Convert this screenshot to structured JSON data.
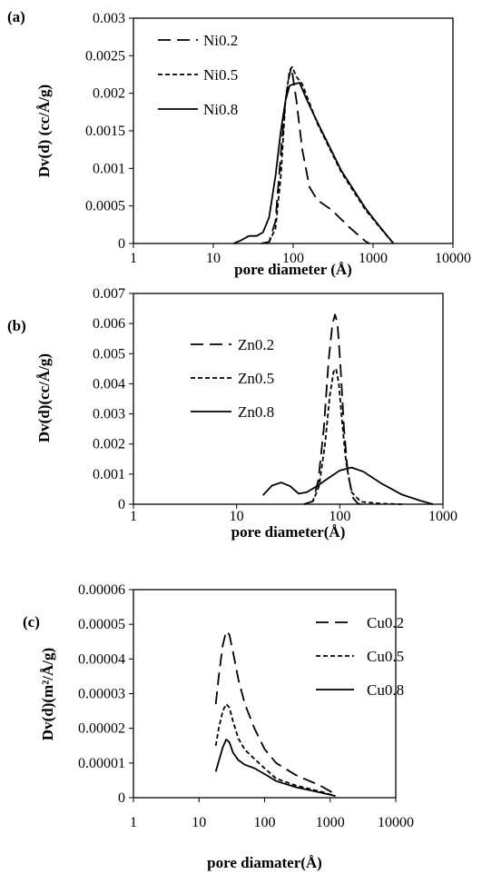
{
  "chart_data": [
    {
      "type": "line",
      "panel_label": "(a)",
      "xlabel": "pore diameter (Å)",
      "ylabel": "Dv(d) (cc/Å/g)",
      "x_scale": "log",
      "xlim": [
        1,
        10000
      ],
      "x_ticks": [
        "1",
        "10",
        "100",
        "1000",
        "10000"
      ],
      "ylim": [
        0,
        0.003
      ],
      "y_ticks": [
        "0",
        "0.0005",
        "0.001",
        "0.0015",
        "0.002",
        "0.0025",
        "0.003"
      ],
      "legend": "top-left inside",
      "series": [
        {
          "name": "Ni0.2",
          "style": "long-dash",
          "points": [
            [
              40,
              0
            ],
            [
              50,
              2e-05
            ],
            [
              60,
              0.0003
            ],
            [
              70,
              0.0012
            ],
            [
              80,
              0.0019
            ],
            [
              88,
              0.0022
            ],
            [
              95,
              0.00235
            ],
            [
              110,
              0.0019
            ],
            [
              130,
              0.00125
            ],
            [
              160,
              0.00075
            ],
            [
              200,
              0.00058
            ],
            [
              300,
              0.00045
            ],
            [
              500,
              0.00022
            ],
            [
              800,
              3e-05
            ],
            [
              900,
              0
            ]
          ]
        },
        {
          "name": "Ni0.5",
          "style": "short-dash",
          "points": [
            [
              40,
              0
            ],
            [
              50,
              2e-05
            ],
            [
              60,
              0.0002
            ],
            [
              70,
              0.0009
            ],
            [
              80,
              0.0019
            ],
            [
              90,
              0.0023
            ],
            [
              97,
              0.00235
            ],
            [
              110,
              0.00222
            ],
            [
              130,
              0.00212
            ],
            [
              200,
              0.0016
            ],
            [
              400,
              0.00095
            ],
            [
              800,
              0.00045
            ],
            [
              1200,
              0.00022
            ],
            [
              1800,
              0
            ]
          ]
        },
        {
          "name": "Ni0.8",
          "style": "solid",
          "points": [
            [
              18,
              0
            ],
            [
              22,
              4e-05
            ],
            [
              28,
              0.0001
            ],
            [
              35,
              0.0001
            ],
            [
              42,
              0.00015
            ],
            [
              50,
              0.00035
            ],
            [
              60,
              0.0009
            ],
            [
              70,
              0.0015
            ],
            [
              80,
              0.0019
            ],
            [
              90,
              0.0021
            ],
            [
              100,
              0.00212
            ],
            [
              120,
              0.00214
            ],
            [
              150,
              0.0019
            ],
            [
              200,
              0.00162
            ],
            [
              400,
              0.00097
            ],
            [
              800,
              0.00047
            ],
            [
              1200,
              0.00023
            ],
            [
              1800,
              0
            ]
          ]
        }
      ]
    },
    {
      "type": "line",
      "panel_label": "(b)",
      "xlabel": "pore diameter(Å)",
      "ylabel": "Dv(d)(cc/Å/g)",
      "x_scale": "log",
      "xlim": [
        1,
        1000
      ],
      "x_ticks": [
        "1",
        "10",
        "100",
        "1000"
      ],
      "ylim": [
        0,
        0.007
      ],
      "y_ticks": [
        "0",
        "0.001",
        "0.002",
        "0.003",
        "0.004",
        "0.005",
        "0.006",
        "0.007"
      ],
      "legend": "top-left inside",
      "series": [
        {
          "name": "Zn0.2",
          "style": "long-dash",
          "points": [
            [
              45,
              0
            ],
            [
              55,
              0.0001
            ],
            [
              62,
              0.0008
            ],
            [
              70,
              0.0025
            ],
            [
              78,
              0.0048
            ],
            [
              85,
              0.006
            ],
            [
              90,
              0.0063
            ],
            [
              95,
              0.006
            ],
            [
              102,
              0.0045
            ],
            [
              110,
              0.0025
            ],
            [
              120,
              0.001
            ],
            [
              135,
              0.0002
            ],
            [
              150,
              2e-05
            ],
            [
              160,
              0
            ]
          ]
        },
        {
          "name": "Zn0.5",
          "style": "short-dash",
          "points": [
            [
              45,
              0
            ],
            [
              55,
              0.0001
            ],
            [
              63,
              0.0006
            ],
            [
              72,
              0.002
            ],
            [
              80,
              0.0036
            ],
            [
              87,
              0.0044
            ],
            [
              92,
              0.0045
            ],
            [
              98,
              0.004
            ],
            [
              105,
              0.0028
            ],
            [
              115,
              0.0014
            ],
            [
              130,
              0.0004
            ],
            [
              160,
              8e-05
            ],
            [
              250,
              2e-05
            ],
            [
              400,
              0
            ]
          ]
        },
        {
          "name": "Zn0.8",
          "style": "solid",
          "points": [
            [
              18,
              0.0003
            ],
            [
              22,
              0.00062
            ],
            [
              27,
              0.00072
            ],
            [
              33,
              0.0006
            ],
            [
              40,
              0.00035
            ],
            [
              48,
              0.0004
            ],
            [
              60,
              0.0006
            ],
            [
              80,
              0.0009
            ],
            [
              100,
              0.00112
            ],
            [
              130,
              0.00122
            ],
            [
              170,
              0.00108
            ],
            [
              250,
              0.0007
            ],
            [
              400,
              0.00032
            ],
            [
              600,
              0.00012
            ],
            [
              800,
              0
            ]
          ]
        }
      ]
    },
    {
      "type": "line",
      "panel_label": "(c)",
      "xlabel": "pore diamater(Å)",
      "ylabel": "Dv(d)(m²/Å/g)",
      "x_scale": "log",
      "xlim": [
        1,
        10000
      ],
      "x_ticks": [
        "1",
        "10",
        "100",
        "1000",
        "10000"
      ],
      "ylim": [
        0,
        6e-05
      ],
      "y_ticks": [
        "0",
        "0.00001",
        "0.00002",
        "0.00003",
        "0.00004",
        "0.00005",
        "0.00006"
      ],
      "legend": "top-right inside",
      "series": [
        {
          "name": "Cu0.2",
          "style": "long-dash",
          "points": [
            [
              18,
              2.7e-05
            ],
            [
              20,
              3.5e-05
            ],
            [
              23,
              4.4e-05
            ],
            [
              26,
              4.8e-05
            ],
            [
              29,
              4.7e-05
            ],
            [
              33,
              4.2e-05
            ],
            [
              40,
              3.4e-05
            ],
            [
              50,
              2.7e-05
            ],
            [
              70,
              2e-05
            ],
            [
              100,
              1.4e-05
            ],
            [
              150,
              1e-05
            ],
            [
              300,
              6.5e-06
            ],
            [
              700,
              3.5e-06
            ],
            [
              1200,
              1e-06
            ]
          ]
        },
        {
          "name": "Cu0.5",
          "style": "short-dash",
          "points": [
            [
              18,
              1.5e-05
            ],
            [
              20,
              2e-05
            ],
            [
              23,
              2.5e-05
            ],
            [
              26,
              2.7e-05
            ],
            [
              29,
              2.6e-05
            ],
            [
              33,
              2.2e-05
            ],
            [
              40,
              1.7e-05
            ],
            [
              50,
              1.38e-05
            ],
            [
              70,
              1.12e-05
            ],
            [
              100,
              8.5e-06
            ],
            [
              150,
              5.5e-06
            ],
            [
              300,
              3.5e-06
            ],
            [
              700,
              1.8e-06
            ],
            [
              1200,
              5e-07
            ]
          ]
        },
        {
          "name": "Cu0.8",
          "style": "solid",
          "points": [
            [
              18,
              7.5e-06
            ],
            [
              20,
              1.05e-05
            ],
            [
              23,
              1.45e-05
            ],
            [
              26,
              1.68e-05
            ],
            [
              29,
              1.6e-05
            ],
            [
              33,
              1.3e-05
            ],
            [
              40,
              1.08e-05
            ],
            [
              50,
              9.5e-06
            ],
            [
              70,
              8.5e-06
            ],
            [
              100,
              6.8e-06
            ],
            [
              150,
              4.8e-06
            ],
            [
              300,
              3e-06
            ],
            [
              700,
              1.5e-06
            ],
            [
              1200,
              5e-07
            ]
          ]
        }
      ]
    }
  ]
}
